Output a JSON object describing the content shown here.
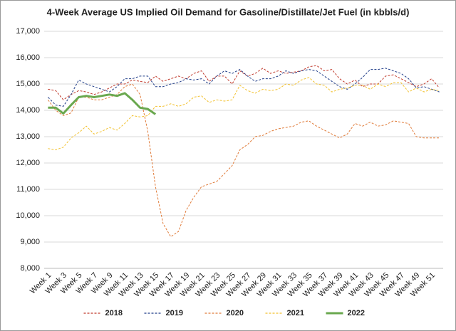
{
  "chart_data": {
    "type": "line",
    "title": "4-Week Average US Implied Oil Demand for Gasoline/Distillate/Jet Fuel (in kbbls/d)",
    "categories": [
      "Week 1",
      null,
      "Week 3",
      null,
      "Week 5",
      null,
      "Week 7",
      null,
      "Week 9",
      null,
      "Week 11",
      null,
      "Week 13",
      null,
      "Week 15",
      null,
      "Week 17",
      null,
      "Week 19",
      null,
      "Week 21",
      null,
      "Week 23",
      null,
      "Week 25",
      null,
      "Week 27",
      null,
      "Week 29",
      null,
      "Week 31",
      null,
      "Week 33",
      null,
      "Week 35",
      null,
      "Week 37",
      null,
      "Week 39",
      null,
      "Week 41",
      null,
      "Week 43",
      null,
      "Week 45",
      null,
      "Week 47",
      null,
      "Week 49",
      null,
      "Week 51",
      null
    ],
    "ylim": [
      8000,
      17000
    ],
    "yticks": [
      {
        "value": 8000,
        "label": "8,000"
      },
      {
        "value": 9000,
        "label": "9,000"
      },
      {
        "value": 10000,
        "label": "10,000"
      },
      {
        "value": 11000,
        "label": "11,000"
      },
      {
        "value": 12000,
        "label": "12,000"
      },
      {
        "value": 13000,
        "label": "13,000"
      },
      {
        "value": 14000,
        "label": "14,000"
      },
      {
        "value": 15000,
        "label": "15,000"
      },
      {
        "value": 16000,
        "label": "16,000"
      },
      {
        "value": 17000,
        "label": "17,000"
      }
    ],
    "grid": true,
    "legend": "bottom",
    "series": [
      {
        "name": "2018",
        "color": "#c0392b",
        "dash": "dashed",
        "values": [
          14800,
          14750,
          14400,
          14600,
          14750,
          14700,
          14600,
          14700,
          14850,
          15000,
          15000,
          15150,
          15100,
          15050,
          15300,
          15100,
          15200,
          15300,
          15200,
          15400,
          15500,
          15100,
          15300,
          15300,
          15000,
          15500,
          15300,
          15400,
          15600,
          15400,
          15500,
          15400,
          15450,
          15500,
          15650,
          15700,
          15500,
          15550,
          15200,
          15000,
          15150,
          14900,
          15000,
          15000,
          15300,
          15350,
          15200,
          15050,
          14900,
          15000,
          15200,
          14850
        ]
      },
      {
        "name": "2019",
        "color": "#1f3c88",
        "dash": "dashed",
        "values": [
          14500,
          14200,
          14150,
          14600,
          15150,
          15000,
          14900,
          14800,
          14700,
          14900,
          15200,
          15200,
          15300,
          15300,
          14900,
          14900,
          15000,
          15050,
          15200,
          15150,
          15200,
          15000,
          15300,
          15500,
          15400,
          15550,
          15300,
          15100,
          15200,
          15200,
          15300,
          15500,
          15400,
          15500,
          15550,
          15500,
          15300,
          15100,
          14900,
          14800,
          15000,
          15250,
          15550,
          15550,
          15600,
          15500,
          15400,
          15200,
          14850,
          14900,
          14800,
          14700
        ]
      },
      {
        "name": "2020",
        "color": "#e07b39",
        "dash": "dashed",
        "values": [
          14400,
          14000,
          13800,
          13900,
          14500,
          14500,
          14400,
          14400,
          14500,
          14600,
          14900,
          15000,
          14600,
          13200,
          11100,
          9700,
          9200,
          9400,
          10200,
          10700,
          11100,
          11200,
          11300,
          11600,
          11900,
          12500,
          12700,
          13000,
          13050,
          13200,
          13300,
          13350,
          13400,
          13550,
          13600,
          13400,
          13250,
          13100,
          12950,
          13100,
          13500,
          13400,
          13550,
          13400,
          13450,
          13600,
          13550,
          13500,
          13000,
          12950,
          12950,
          12950
        ]
      },
      {
        "name": "2021",
        "color": "#f2c12e",
        "dash": "dashed",
        "values": [
          12550,
          12500,
          12600,
          12950,
          13150,
          13400,
          13100,
          13200,
          13350,
          13250,
          13500,
          13800,
          13750,
          13800,
          14150,
          14150,
          14250,
          14150,
          14250,
          14500,
          14550,
          14300,
          14400,
          14350,
          14400,
          14950,
          14750,
          14650,
          14800,
          14750,
          14800,
          15000,
          14950,
          15150,
          15250,
          15000,
          14950,
          14700,
          14800,
          14850,
          14950,
          14950,
          14800,
          15000,
          14900,
          15050,
          15050,
          14700,
          14850,
          14700,
          14800,
          14750
        ]
      },
      {
        "name": "2022",
        "color": "#6aa84f",
        "dash": "solid",
        "values": [
          14100,
          14100,
          13880,
          14200,
          14500,
          14550,
          14500,
          14550,
          14600,
          14550,
          14650,
          14400,
          14100,
          14050,
          13850,
          null,
          null,
          null,
          null,
          null,
          null,
          null,
          null,
          null,
          null,
          null,
          null,
          null,
          null,
          null,
          null,
          null,
          null,
          null,
          null,
          null,
          null,
          null,
          null,
          null,
          null,
          null,
          null,
          null,
          null,
          null,
          null,
          null,
          null,
          null,
          null,
          null
        ]
      }
    ]
  }
}
